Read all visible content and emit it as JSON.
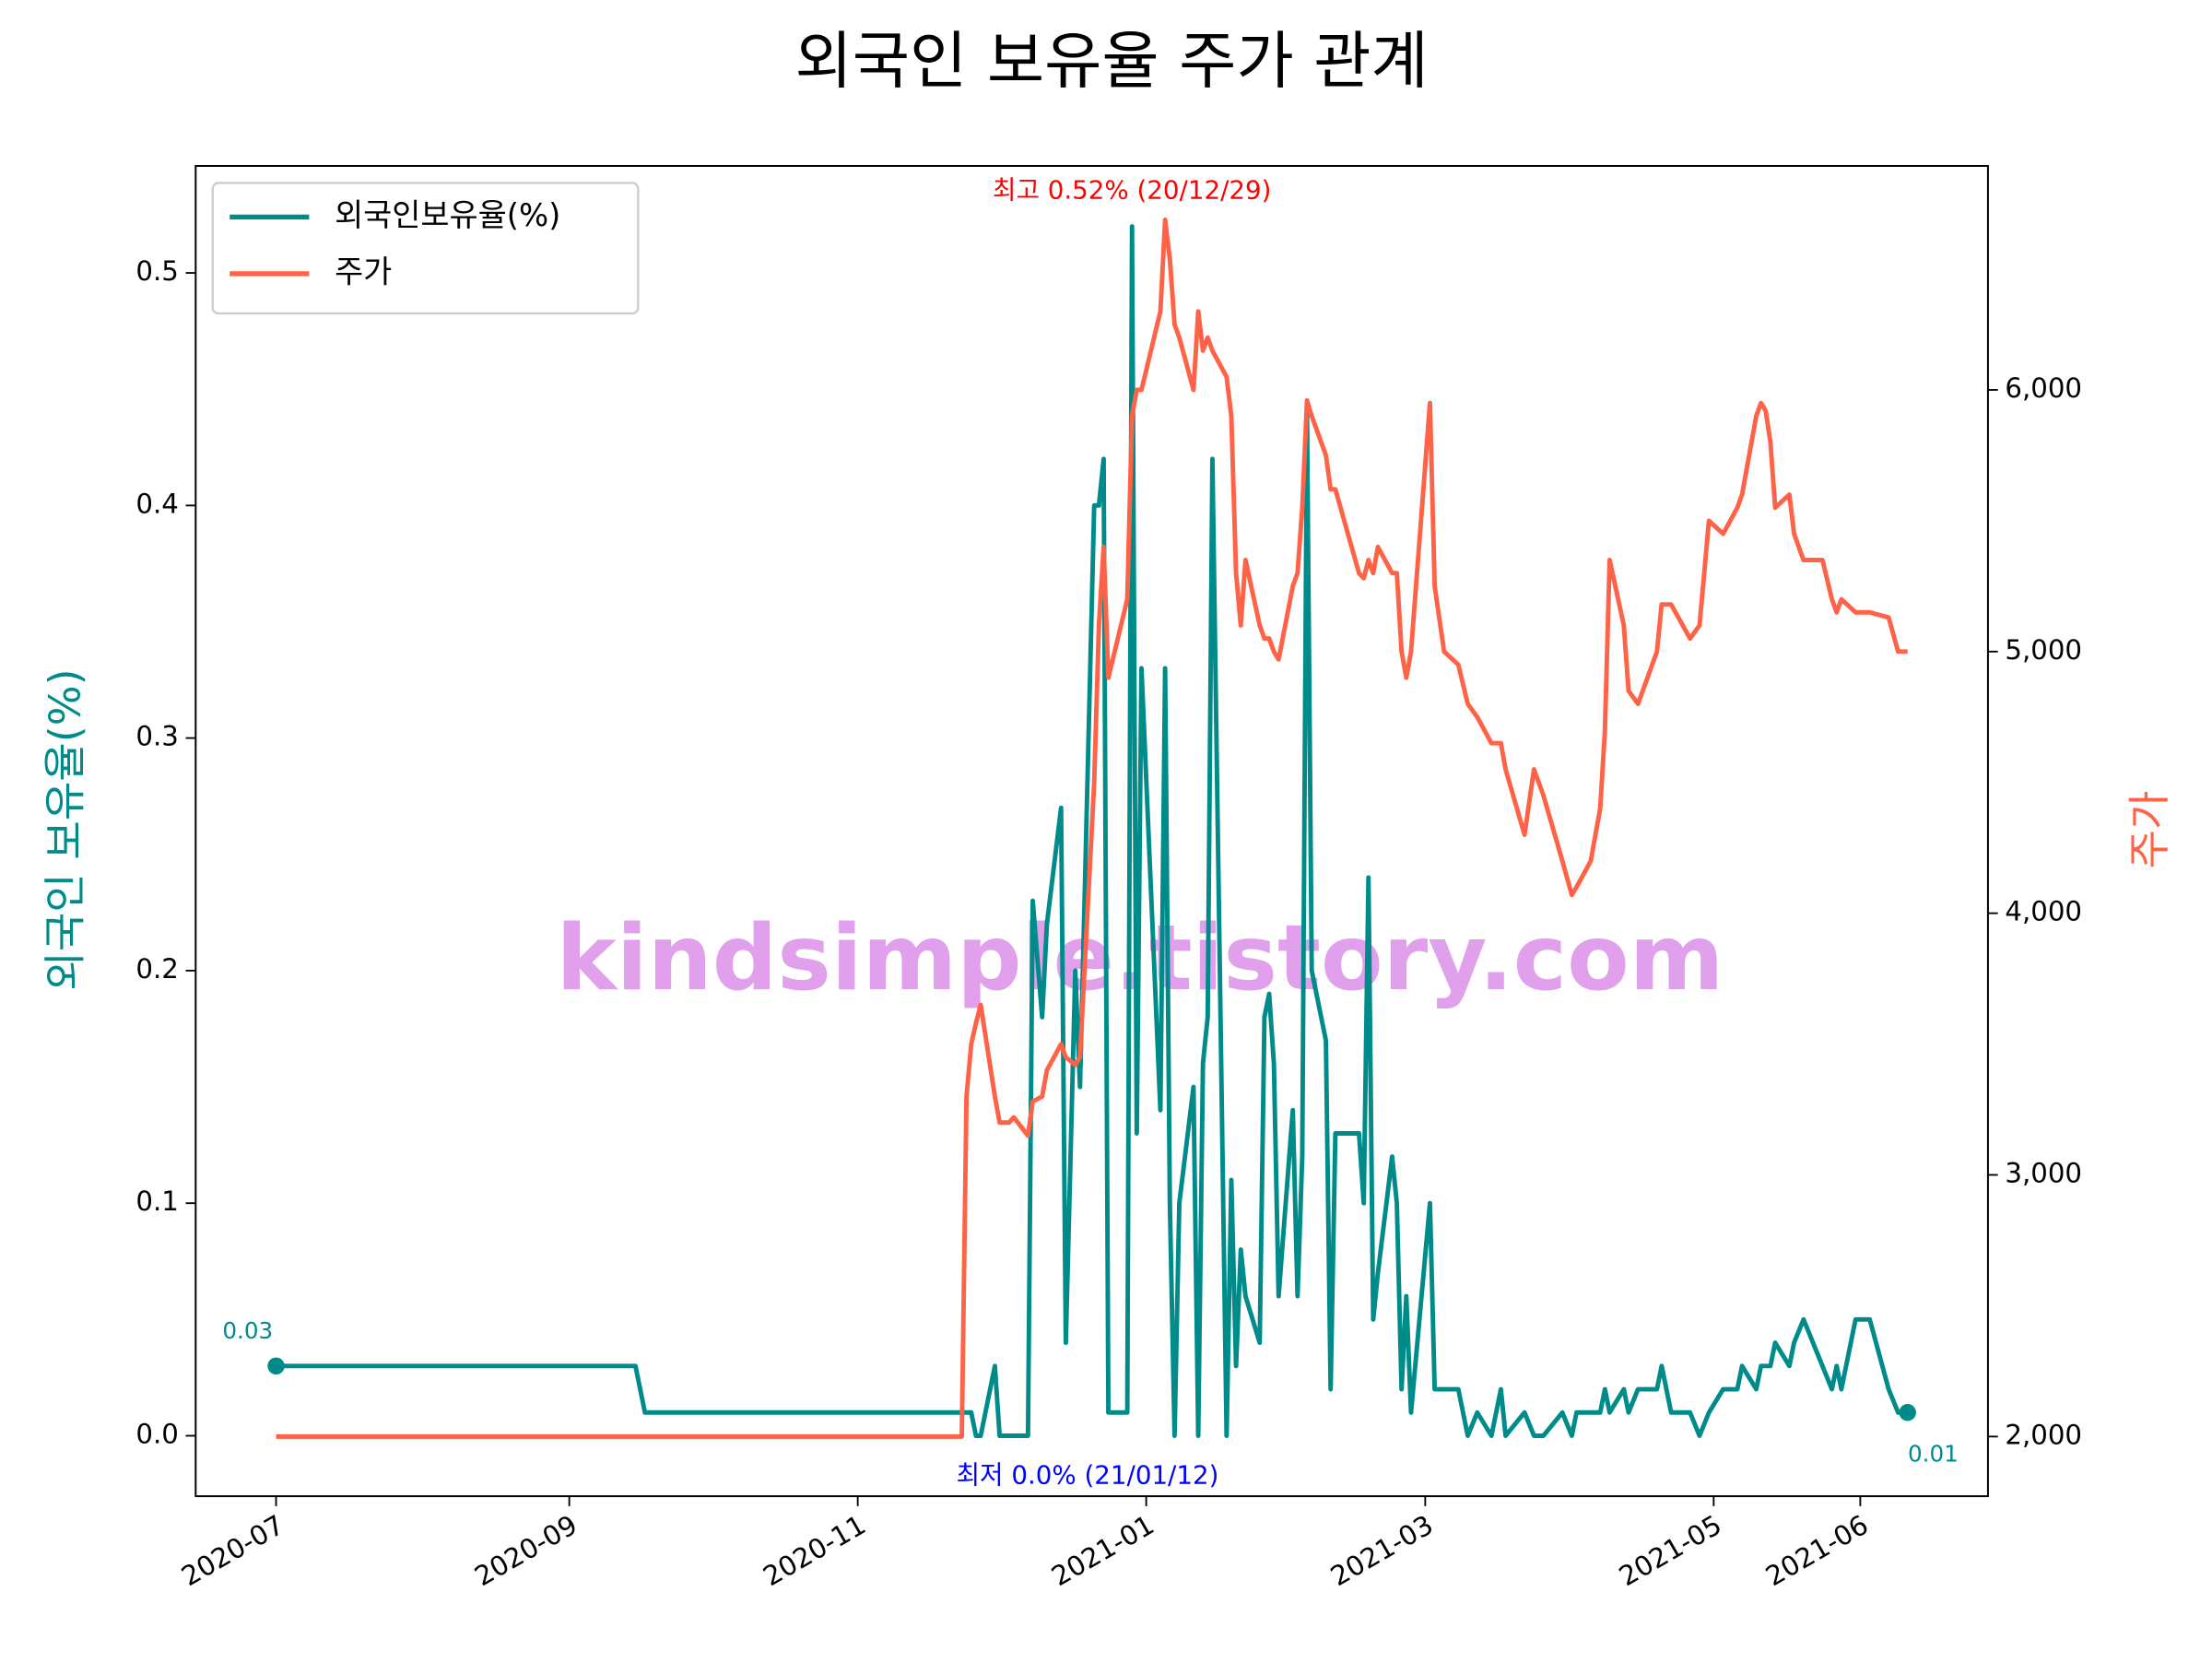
{
  "chart_data": {
    "type": "line",
    "title": "외국인 보유율 주가 관계",
    "y_label": "외국인 보유율(%)",
    "y2_label": "주가",
    "watermark": "kindsimple.tistory.com",
    "max_annotation": {
      "text": "최고 0.52% (20/12/29)",
      "color": "#ff0000"
    },
    "min_annotation": {
      "text": "최저 0.0% (21/01/12)",
      "color": "#0000ff"
    },
    "start_label": "0.03",
    "end_label": "0.01",
    "legend": "upper left",
    "xlim": [
      "2020-06-14",
      "2021-06-28"
    ],
    "xticks": [
      "2020-07",
      "2020-09",
      "2020-11",
      "2021-01",
      "2021-03",
      "2021-05",
      "2021-06"
    ],
    "ylim": [
      -0.026,
      0.546
    ],
    "yticks": [
      {
        "value": 0,
        "label": "0.0"
      },
      0.1,
      0.2,
      0.3,
      0.4,
      0.5
    ],
    "y2lim": [
      1772,
      6856
    ],
    "y2ticks": [
      {
        "value": 2000,
        "label": "2,000"
      },
      {
        "value": 3000,
        "label": "3,000"
      },
      {
        "value": 4000,
        "label": "4,000"
      },
      {
        "value": 5000,
        "label": "5,000"
      },
      {
        "value": 6000,
        "label": "6,000"
      }
    ],
    "x": [
      "2020-07-01",
      "2020-07-10",
      "2020-08-03",
      "2020-09-15",
      "2020-09-17",
      "2020-11-23",
      "2020-11-24",
      "2020-11-25",
      "2020-11-26",
      "2020-11-27",
      "2020-11-30",
      "2020-12-01",
      "2020-12-03",
      "2020-12-04",
      "2020-12-07",
      "2020-12-08",
      "2020-12-10",
      "2020-12-11",
      "2020-12-14",
      "2020-12-15",
      "2020-12-17",
      "2020-12-18",
      "2020-12-21",
      "2020-12-22",
      "2020-12-23",
      "2020-12-24",
      "2020-12-28",
      "2020-12-29",
      "2020-12-30",
      "2020-12-31",
      "2021-01-04",
      "2021-01-05",
      "2021-01-06",
      "2021-01-07",
      "2021-01-08",
      "2021-01-11",
      "2021-01-12",
      "2021-01-13",
      "2021-01-14",
      "2021-01-15",
      "2021-01-18",
      "2021-01-19",
      "2021-01-20",
      "2021-01-21",
      "2021-01-22",
      "2021-01-25",
      "2021-01-26",
      "2021-01-27",
      "2021-01-28",
      "2021-01-29",
      "2021-02-01",
      "2021-02-02",
      "2021-02-03",
      "2021-02-04",
      "2021-02-05",
      "2021-02-08",
      "2021-02-09",
      "2021-02-10",
      "2021-02-15",
      "2021-02-16",
      "2021-02-17",
      "2021-02-18",
      "2021-02-19",
      "2021-02-22",
      "2021-02-23",
      "2021-02-24",
      "2021-02-25",
      "2021-02-26",
      "2021-03-02",
      "2021-03-03",
      "2021-03-05",
      "2021-03-08",
      "2021-03-10",
      "2021-03-12",
      "2021-03-15",
      "2021-03-17",
      "2021-03-18",
      "2021-03-22",
      "2021-03-24",
      "2021-03-26",
      "2021-03-30",
      "2021-04-01",
      "2021-04-02",
      "2021-04-05",
      "2021-04-07",
      "2021-04-08",
      "2021-04-09",
      "2021-04-12",
      "2021-04-13",
      "2021-04-15",
      "2021-04-19",
      "2021-04-20",
      "2021-04-22",
      "2021-04-26",
      "2021-04-28",
      "2021-04-30",
      "2021-05-03",
      "2021-05-06",
      "2021-05-07",
      "2021-05-10",
      "2021-05-11",
      "2021-05-12",
      "2021-05-13",
      "2021-05-14",
      "2021-05-17",
      "2021-05-18",
      "2021-05-20",
      "2021-05-24",
      "2021-05-26",
      "2021-05-27",
      "2021-05-28",
      "2021-05-31",
      "2021-06-03",
      "2021-06-07",
      "2021-06-09",
      "2021-06-11"
    ],
    "series": [
      {
        "name": "외국인보유율(%)",
        "color": "#008b8b",
        "axis": "y",
        "values": [
          0.03,
          0.03,
          0.03,
          0.03,
          0.01,
          0.01,
          0.01,
          0.01,
          0.0,
          0.0,
          0.03,
          0.0,
          0.0,
          0.0,
          0.0,
          0.23,
          0.18,
          0.22,
          0.27,
          0.04,
          0.2,
          0.15,
          0.4,
          0.4,
          0.42,
          0.01,
          0.01,
          0.52,
          0.13,
          0.33,
          0.14,
          0.33,
          0.1,
          0.0,
          0.1,
          0.15,
          0.0,
          0.16,
          0.18,
          0.42,
          0.0,
          0.11,
          0.03,
          0.08,
          0.06,
          0.04,
          0.18,
          0.19,
          0.16,
          0.06,
          0.14,
          0.06,
          0.12,
          0.44,
          0.2,
          0.17,
          0.02,
          0.13,
          0.13,
          0.1,
          0.24,
          0.05,
          0.07,
          0.12,
          0.1,
          0.02,
          0.06,
          0.01,
          0.1,
          0.02,
          0.02,
          0.02,
          0.0,
          0.01,
          0.0,
          0.02,
          0.0,
          0.01,
          0.0,
          0.0,
          0.01,
          0.0,
          0.01,
          0.01,
          0.01,
          0.02,
          0.01,
          0.02,
          0.01,
          0.02,
          0.02,
          0.03,
          0.01,
          0.01,
          0.0,
          0.01,
          0.02,
          0.02,
          0.03,
          0.02,
          0.03,
          0.03,
          0.03,
          0.04,
          0.03,
          0.04,
          0.05,
          0.03,
          0.02,
          0.03,
          0.02,
          0.05,
          0.05,
          0.02,
          0.01,
          0.01
        ]
      },
      {
        "name": "주가",
        "color": "#ff6347",
        "axis": "y2",
        "values": [
          2000,
          2000,
          2000,
          2000,
          2000,
          2000,
          3300,
          3500,
          3580,
          3650,
          3300,
          3200,
          3200,
          3220,
          3150,
          3280,
          3300,
          3400,
          3500,
          3450,
          3420,
          3450,
          4500,
          5100,
          5400,
          4900,
          5200,
          5900,
          6000,
          6000,
          6300,
          6650,
          6500,
          6250,
          6200,
          6000,
          6300,
          6150,
          6200,
          6150,
          6050,
          5900,
          5300,
          5100,
          5350,
          5100,
          5050,
          5050,
          5000,
          4970,
          5250,
          5300,
          5550,
          5960,
          5900,
          5750,
          5620,
          5620,
          5300,
          5280,
          5350,
          5300,
          5400,
          5300,
          5300,
          5000,
          4900,
          5000,
          5950,
          5250,
          5000,
          4950,
          4800,
          4750,
          4650,
          4650,
          4550,
          4300,
          4550,
          4450,
          4200,
          4070,
          4100,
          4200,
          4400,
          4700,
          5350,
          5100,
          4850,
          4800,
          5000,
          5180,
          5180,
          5050,
          5100,
          5500,
          5450,
          5550,
          5600,
          5900,
          5950,
          5920,
          5800,
          5550,
          5600,
          5450,
          5350,
          5350,
          5200,
          5150,
          5200,
          5150,
          5150,
          5130,
          5000,
          5000
        ]
      }
    ]
  }
}
